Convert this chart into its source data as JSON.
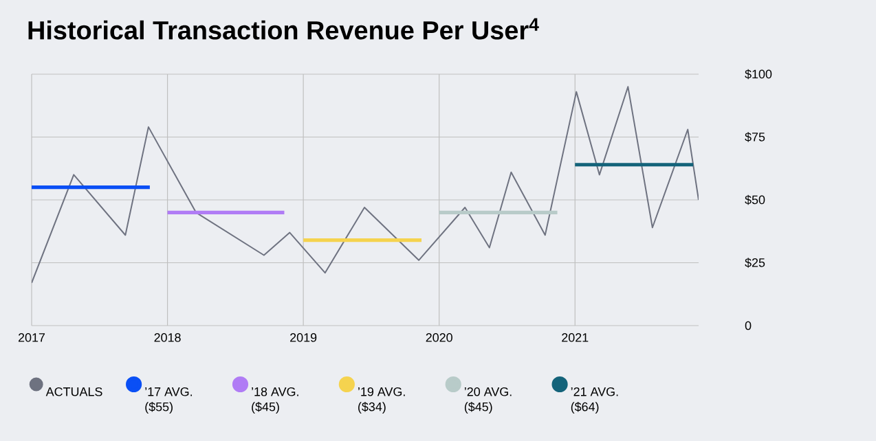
{
  "chart_data": {
    "type": "line",
    "title": "Historical Transaction Revenue Per User$^{4}$",
    "xlim": [
      2017,
      2021.91
    ],
    "xticks": [
      2017,
      2018,
      2019,
      2020,
      2021
    ],
    "ylim": [
      0,
      100
    ],
    "yticks": [
      0,
      {
        "value": 25,
        "label": "$25"
      },
      {
        "value": 50,
        "label": "$50"
      },
      {
        "value": 75,
        "label": "$75"
      },
      {
        "value": 100,
        "label": "$100"
      }
    ],
    "grid": true,
    "legend": "bottom",
    "series": [
      {
        "name": "ACTUALS",
        "color": "#6e7280",
        "x": [
          2017.0,
          2017.31,
          2017.69,
          2017.86,
          2018.21,
          2018.71,
          2018.9,
          2019.16,
          2019.45,
          2019.85,
          2020.19,
          2020.37,
          2020.53,
          2020.78,
          2021.01,
          2021.18,
          2021.39,
          2021.57,
          2021.83,
          2021.91
        ],
        "values": [
          17,
          60,
          36,
          79,
          45,
          28,
          37,
          21,
          47,
          26,
          47,
          31,
          61,
          36,
          93,
          60,
          95,
          39,
          78,
          50
        ]
      },
      {
        "name": "’17 AVG. ($55)",
        "color": "#0a4ff5",
        "x": [
          2017.0,
          2017.87
        ],
        "values": [
          55,
          55
        ]
      },
      {
        "name": "’18 AVG. ($45)",
        "color": "#b07cf5",
        "x": [
          2018.0,
          2018.86
        ],
        "values": [
          45,
          45
        ]
      },
      {
        "name": "’19 AVG. ($34)",
        "color": "#f5d34f",
        "x": [
          2019.0,
          2019.87
        ],
        "values": [
          34,
          34
        ]
      },
      {
        "name": "’20 AVG. ($45)",
        "color": "#b8cbc9",
        "x": [
          2020.0,
          2020.87
        ],
        "values": [
          45,
          45
        ]
      },
      {
        "name": "’21 AVG. ($64)",
        "color": "#14637a",
        "x": [
          2021.0,
          2021.87
        ],
        "values": [
          64,
          64
        ]
      }
    ]
  }
}
